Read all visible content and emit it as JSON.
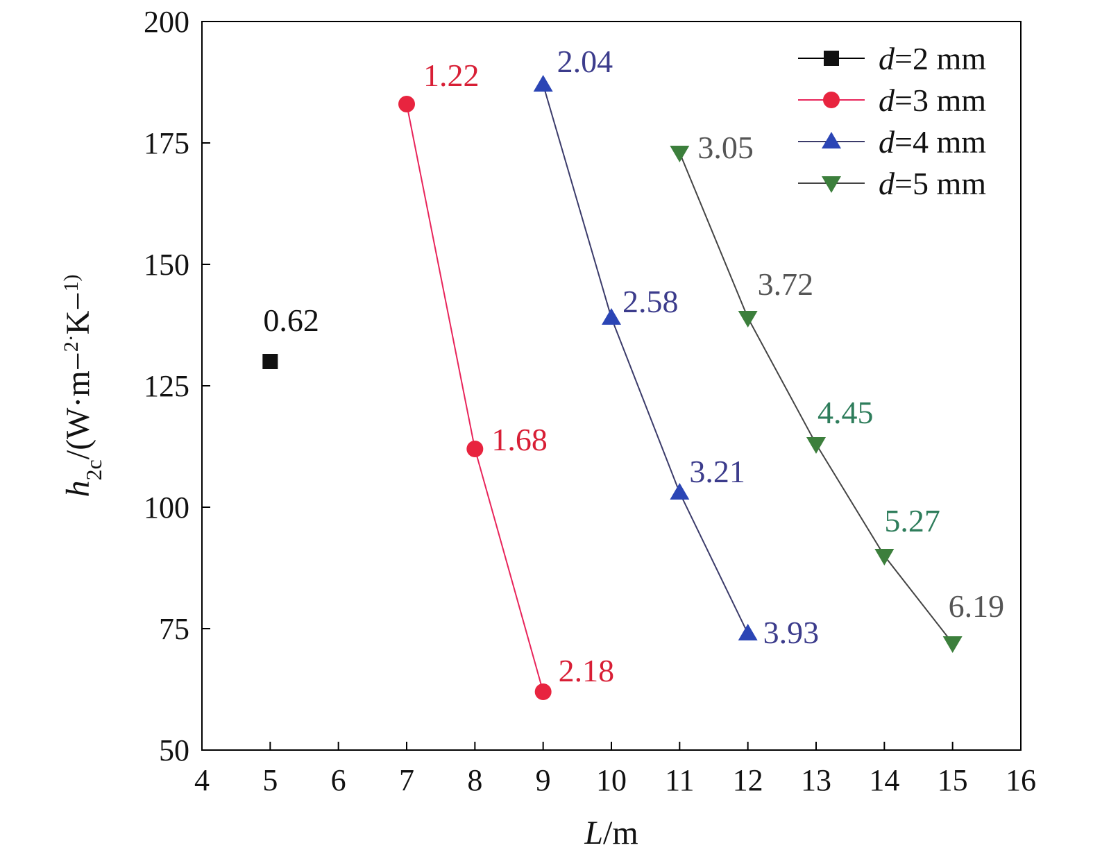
{
  "chart_data": {
    "type": "line",
    "xlabel": "L/m",
    "ylabel": "h2c/(W·m−2·K−1)",
    "xlim": [
      4,
      16
    ],
    "ylim": [
      50,
      200
    ],
    "x_ticks": [
      4,
      5,
      6,
      7,
      8,
      9,
      10,
      11,
      12,
      13,
      14,
      15,
      16
    ],
    "y_ticks": [
      50,
      75,
      100,
      125,
      150,
      175,
      200
    ],
    "grid": false,
    "legend_position": "top-right",
    "series": [
      {
        "name": "d=2 mm",
        "marker": "square",
        "line_color": "#000000",
        "marker_color": "#111111",
        "label_color": "#111111",
        "x": [
          5
        ],
        "y": [
          130
        ],
        "labels": [
          "0.62"
        ]
      },
      {
        "name": "d=3 mm",
        "marker": "circle",
        "line_color": "#e8245a",
        "marker_color": "#e8243f",
        "label_color": "#d81e35",
        "x": [
          7,
          8,
          9
        ],
        "y": [
          183,
          112,
          62
        ],
        "labels": [
          "1.22",
          "1.68",
          "2.18"
        ]
      },
      {
        "name": "d=4 mm",
        "marker": "triangle-up",
        "line_color": "#3b3b6a",
        "marker_color": "#2b45b5",
        "label_color": "#3c3c8c",
        "x": [
          9,
          10,
          11,
          12
        ],
        "y": [
          187,
          139,
          103,
          74
        ],
        "labels": [
          "2.04",
          "2.58",
          "3.21",
          "3.93"
        ]
      },
      {
        "name": "d=5 mm",
        "marker": "triangle-down",
        "line_color": "#444444",
        "marker_color": "#3c7f3c",
        "label_color": "#555555",
        "x": [
          11,
          12,
          13,
          14,
          15
        ],
        "y": [
          173,
          139,
          113,
          90,
          72
        ],
        "labels": [
          "3.05",
          "3.72",
          "4.45",
          "5.27",
          "6.19"
        ],
        "label_colors": [
          "#555555",
          "#555555",
          "#2e7d5b",
          "#2e7d5b",
          "#555555"
        ]
      }
    ]
  }
}
